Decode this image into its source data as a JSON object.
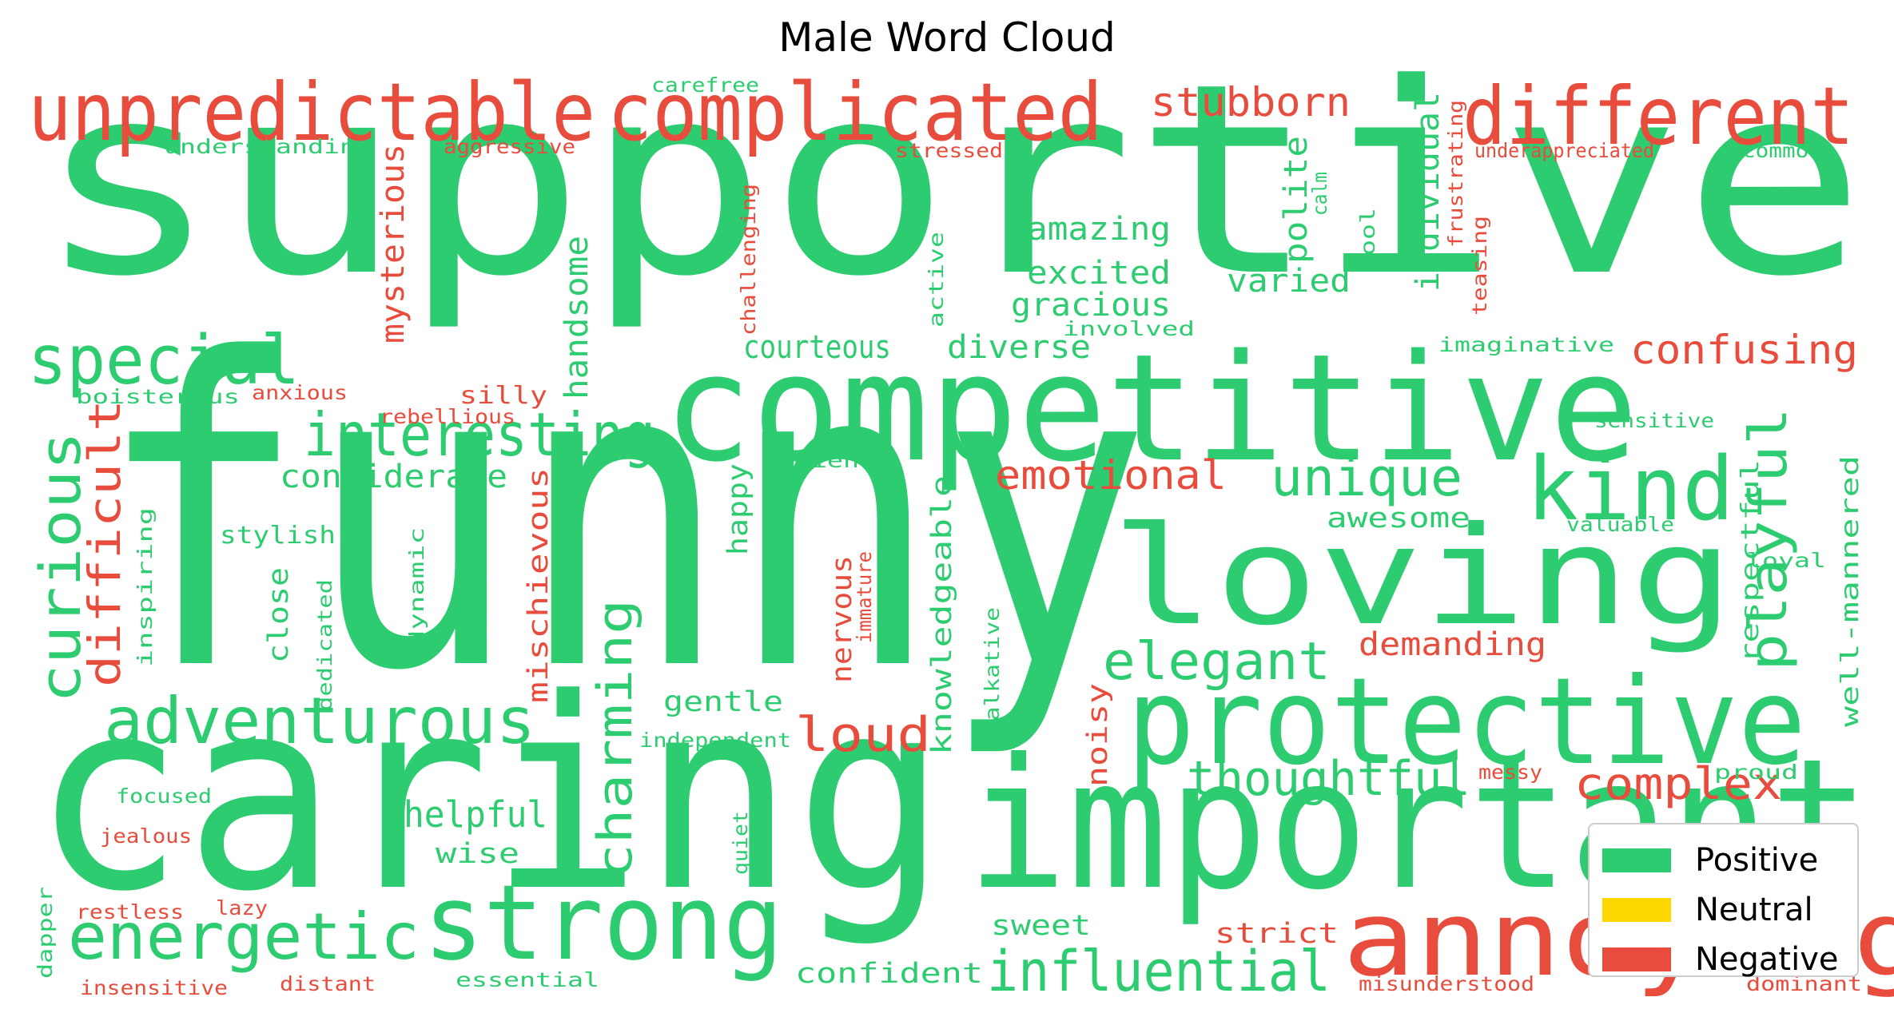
{
  "chart_data": {
    "type": "wordcloud",
    "title": "Male Word Cloud",
    "colors": {
      "Positive": "#2ecc71",
      "Neutral": "#ffd700",
      "Negative": "#e74c3c"
    },
    "legend": {
      "placement": "lower-right",
      "entries": [
        {
          "label": "Positive",
          "color": "#2ecc71"
        },
        {
          "label": "Neutral",
          "color": "#ffd700"
        },
        {
          "label": "Negative",
          "color": "#e74c3c"
        }
      ]
    },
    "words": [
      {
        "text": "supportive",
        "sentiment": "Positive"
      },
      {
        "text": "funny",
        "sentiment": "Positive"
      },
      {
        "text": "caring",
        "sentiment": "Positive"
      },
      {
        "text": "competitive",
        "sentiment": "Positive"
      },
      {
        "text": "important",
        "sentiment": "Positive"
      },
      {
        "text": "loving",
        "sentiment": "Positive"
      },
      {
        "text": "protective",
        "sentiment": "Positive"
      },
      {
        "text": "strong",
        "sentiment": "Positive"
      },
      {
        "text": "complicated",
        "sentiment": "Negative"
      },
      {
        "text": "unpredictable",
        "sentiment": "Negative"
      },
      {
        "text": "different",
        "sentiment": "Negative"
      },
      {
        "text": "annoying",
        "sentiment": "Negative"
      },
      {
        "text": "kind",
        "sentiment": "Positive"
      },
      {
        "text": "special",
        "sentiment": "Positive"
      },
      {
        "text": "interesting",
        "sentiment": "Positive"
      },
      {
        "text": "adventurous",
        "sentiment": "Positive"
      },
      {
        "text": "energetic",
        "sentiment": "Positive"
      },
      {
        "text": "influential",
        "sentiment": "Positive"
      },
      {
        "text": "unique",
        "sentiment": "Positive"
      },
      {
        "text": "elegant",
        "sentiment": "Positive"
      },
      {
        "text": "thoughtful",
        "sentiment": "Positive"
      },
      {
        "text": "curious",
        "sentiment": "Positive"
      },
      {
        "text": "playful",
        "sentiment": "Positive"
      },
      {
        "text": "charming",
        "sentiment": "Positive"
      },
      {
        "text": "complex",
        "sentiment": "Negative"
      },
      {
        "text": "loud",
        "sentiment": "Negative"
      },
      {
        "text": "confusing",
        "sentiment": "Negative"
      },
      {
        "text": "difficult",
        "sentiment": "Negative"
      },
      {
        "text": "stubborn",
        "sentiment": "Negative"
      },
      {
        "text": "emotional",
        "sentiment": "Negative"
      },
      {
        "text": "helpful",
        "sentiment": "Positive"
      },
      {
        "text": "mysterious",
        "sentiment": "Negative"
      },
      {
        "text": "handsome",
        "sentiment": "Positive"
      },
      {
        "text": "amazing",
        "sentiment": "Positive"
      },
      {
        "text": "excited",
        "sentiment": "Positive"
      },
      {
        "text": "gracious",
        "sentiment": "Positive"
      },
      {
        "text": "courteous",
        "sentiment": "Positive"
      },
      {
        "text": "diverse",
        "sentiment": "Positive"
      },
      {
        "text": "varied",
        "sentiment": "Positive"
      },
      {
        "text": "polite",
        "sentiment": "Positive"
      },
      {
        "text": "individual",
        "sentiment": "Positive"
      },
      {
        "text": "considerate",
        "sentiment": "Positive"
      },
      {
        "text": "awesome",
        "sentiment": "Positive"
      },
      {
        "text": "mischievous",
        "sentiment": "Negative"
      },
      {
        "text": "knowledgeable",
        "sentiment": "Positive"
      },
      {
        "text": "respectful",
        "sentiment": "Positive"
      },
      {
        "text": "well-mannered",
        "sentiment": "Positive"
      },
      {
        "text": "demanding",
        "sentiment": "Negative"
      },
      {
        "text": "gentle",
        "sentiment": "Positive"
      },
      {
        "text": "close",
        "sentiment": "Positive"
      },
      {
        "text": "happy",
        "sentiment": "Positive"
      },
      {
        "text": "nervous",
        "sentiment": "Negative"
      },
      {
        "text": "noisy",
        "sentiment": "Negative"
      },
      {
        "text": "strict",
        "sentiment": "Negative"
      },
      {
        "text": "sweet",
        "sentiment": "Positive"
      },
      {
        "text": "confident",
        "sentiment": "Positive"
      },
      {
        "text": "wise",
        "sentiment": "Positive"
      },
      {
        "text": "stylish",
        "sentiment": "Positive"
      },
      {
        "text": "silly",
        "sentiment": "Negative"
      },
      {
        "text": "rebellious",
        "sentiment": "Negative"
      },
      {
        "text": "boisterous",
        "sentiment": "Positive"
      },
      {
        "text": "anxious",
        "sentiment": "Negative"
      },
      {
        "text": "understanding",
        "sentiment": "Positive"
      },
      {
        "text": "aggressive",
        "sentiment": "Negative"
      },
      {
        "text": "carefree",
        "sentiment": "Positive"
      },
      {
        "text": "stressed",
        "sentiment": "Negative"
      },
      {
        "text": "underappreciated",
        "sentiment": "Negative"
      },
      {
        "text": "common",
        "sentiment": "Positive"
      },
      {
        "text": "frustrating",
        "sentiment": "Negative"
      },
      {
        "text": "calm",
        "sentiment": "Positive"
      },
      {
        "text": "cool",
        "sentiment": "Positive"
      },
      {
        "text": "teasing",
        "sentiment": "Negative"
      },
      {
        "text": "challenging",
        "sentiment": "Negative"
      },
      {
        "text": "active",
        "sentiment": "Positive"
      },
      {
        "text": "involved",
        "sentiment": "Positive"
      },
      {
        "text": "imaginative",
        "sentiment": "Positive"
      },
      {
        "text": "sensitive",
        "sentiment": "Positive"
      },
      {
        "text": "patient",
        "sentiment": "Positive"
      },
      {
        "text": "valuable",
        "sentiment": "Positive"
      },
      {
        "text": "loyal",
        "sentiment": "Positive"
      },
      {
        "text": "inspiring",
        "sentiment": "Positive"
      },
      {
        "text": "dedicated",
        "sentiment": "Positive"
      },
      {
        "text": "dynamic",
        "sentiment": "Positive"
      },
      {
        "text": "immature",
        "sentiment": "Negative"
      },
      {
        "text": "talkative",
        "sentiment": "Positive"
      },
      {
        "text": "independent",
        "sentiment": "Positive"
      },
      {
        "text": "messy",
        "sentiment": "Negative"
      },
      {
        "text": "proud",
        "sentiment": "Positive"
      },
      {
        "text": "focused",
        "sentiment": "Positive"
      },
      {
        "text": "jealous",
        "sentiment": "Negative"
      },
      {
        "text": "restless",
        "sentiment": "Negative"
      },
      {
        "text": "lazy",
        "sentiment": "Negative"
      },
      {
        "text": "quiet",
        "sentiment": "Positive"
      },
      {
        "text": "dapper",
        "sentiment": "Positive"
      },
      {
        "text": "insensitive",
        "sentiment": "Negative"
      },
      {
        "text": "distant",
        "sentiment": "Negative"
      },
      {
        "text": "essential",
        "sentiment": "Positive"
      },
      {
        "text": "misunderstood",
        "sentiment": "Negative"
      },
      {
        "text": "dominant",
        "sentiment": "Negative"
      }
    ]
  }
}
